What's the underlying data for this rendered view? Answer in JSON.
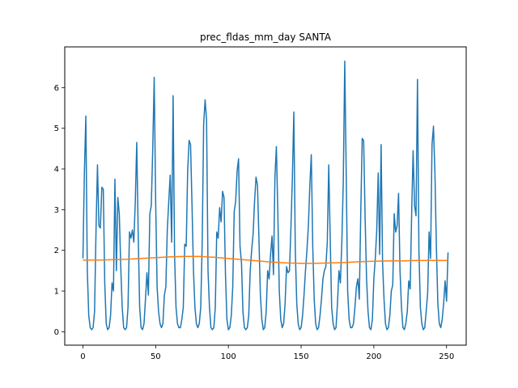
{
  "chart_data": {
    "type": "line",
    "title": "prec_fldas_mm_day SANTA",
    "xlabel": "",
    "ylabel": "",
    "xlim": [
      -12.5,
      263.5
    ],
    "ylim": [
      -0.33,
      7.0
    ],
    "xticks": [
      0,
      50,
      100,
      150,
      200,
      250
    ],
    "yticks": [
      0,
      1,
      2,
      3,
      4,
      5,
      6
    ],
    "grid": false,
    "legend": "none",
    "series": [
      {
        "color": "#1f77b4",
        "x": [
          0,
          1,
          2,
          3,
          4,
          5,
          6,
          7,
          8,
          9,
          10,
          11,
          12,
          13,
          14,
          15,
          16,
          17,
          18,
          19,
          20,
          21,
          22,
          23,
          24,
          25,
          26,
          27,
          28,
          29,
          30,
          31,
          32,
          33,
          34,
          35,
          36,
          37,
          38,
          39,
          40,
          41,
          42,
          43,
          44,
          45,
          46,
          47,
          48,
          49,
          50,
          51,
          52,
          53,
          54,
          55,
          56,
          57,
          58,
          59,
          60,
          61,
          62,
          63,
          64,
          65,
          66,
          67,
          68,
          69,
          70,
          71,
          72,
          73,
          74,
          75,
          76,
          77,
          78,
          79,
          80,
          81,
          82,
          83,
          84,
          85,
          86,
          87,
          88,
          89,
          90,
          91,
          92,
          93,
          94,
          95,
          96,
          97,
          98,
          99,
          100,
          101,
          102,
          103,
          104,
          105,
          106,
          107,
          108,
          109,
          110,
          111,
          112,
          113,
          114,
          115,
          116,
          117,
          118,
          119,
          120,
          121,
          122,
          123,
          124,
          125,
          126,
          127,
          128,
          129,
          130,
          131,
          132,
          133,
          134,
          135,
          136,
          137,
          138,
          139,
          140,
          141,
          142,
          143,
          144,
          145,
          146,
          147,
          148,
          149,
          150,
          151,
          152,
          153,
          154,
          155,
          156,
          157,
          158,
          159,
          160,
          161,
          162,
          163,
          164,
          165,
          166,
          167,
          168,
          169,
          170,
          171,
          172,
          173,
          174,
          175,
          176,
          177,
          178,
          179,
          180,
          181,
          182,
          183,
          184,
          185,
          186,
          187,
          188,
          189,
          190,
          191,
          192,
          193,
          194,
          195,
          196,
          197,
          198,
          199,
          200,
          201,
          202,
          203,
          204,
          205,
          206,
          207,
          208,
          209,
          210,
          211,
          212,
          213,
          214,
          215,
          216,
          217,
          218,
          219,
          220,
          221,
          222,
          223,
          224,
          225,
          226,
          227,
          228,
          229,
          230,
          231,
          232,
          233,
          234,
          235,
          236,
          237,
          238,
          239,
          240,
          241,
          242,
          243,
          244,
          245,
          246,
          247,
          248,
          249,
          250,
          251
        ],
        "values": [
          1.8,
          3.9,
          5.3,
          1.5,
          0.4,
          0.1,
          0.05,
          0.1,
          0.5,
          2.5,
          4.1,
          2.6,
          2.55,
          3.55,
          3.5,
          1.2,
          0.2,
          0.05,
          0.1,
          0.4,
          1.2,
          1.0,
          3.75,
          1.5,
          3.3,
          2.9,
          1.6,
          0.6,
          0.1,
          0.05,
          0.1,
          0.6,
          2.45,
          2.3,
          2.5,
          2.2,
          3.2,
          4.65,
          2.4,
          0.6,
          0.1,
          0.05,
          0.2,
          0.8,
          1.45,
          0.9,
          2.9,
          3.1,
          4.5,
          6.25,
          3.2,
          1.1,
          0.5,
          0.2,
          0.1,
          0.2,
          0.9,
          1.1,
          2.5,
          3.2,
          3.85,
          2.2,
          5.8,
          1.9,
          0.6,
          0.2,
          0.1,
          0.1,
          0.3,
          0.6,
          2.15,
          2.1,
          3.95,
          4.7,
          4.6,
          3.1,
          1.5,
          0.6,
          0.2,
          0.1,
          0.2,
          0.6,
          2.2,
          5.1,
          5.7,
          5.2,
          1.5,
          0.6,
          0.1,
          0.05,
          0.1,
          0.6,
          2.45,
          2.3,
          3.05,
          2.7,
          3.45,
          3.3,
          1.4,
          0.3,
          0.05,
          0.1,
          0.4,
          1.1,
          2.95,
          3.2,
          3.95,
          4.25,
          2.1,
          1.7,
          0.5,
          0.1,
          0.05,
          0.1,
          0.4,
          1.5,
          2.0,
          2.4,
          3.2,
          3.8,
          3.6,
          2.3,
          0.9,
          0.3,
          0.05,
          0.1,
          0.5,
          1.5,
          1.3,
          1.9,
          2.35,
          1.4,
          3.8,
          4.55,
          2.9,
          1.0,
          0.3,
          0.1,
          0.2,
          0.7,
          1.6,
          1.45,
          1.5,
          2.55,
          3.8,
          5.4,
          2.0,
          0.7,
          0.2,
          0.05,
          0.1,
          0.4,
          0.9,
          1.5,
          2.0,
          2.6,
          3.6,
          4.35,
          2.1,
          0.8,
          0.2,
          0.05,
          0.1,
          0.4,
          0.8,
          1.3,
          1.5,
          1.6,
          2.2,
          4.1,
          2.3,
          0.6,
          0.2,
          0.05,
          0.1,
          0.7,
          1.5,
          1.2,
          2.2,
          3.7,
          6.65,
          3.9,
          1.0,
          0.3,
          0.1,
          0.1,
          0.2,
          0.6,
          1.1,
          1.3,
          0.8,
          2.9,
          4.75,
          4.7,
          2.8,
          1.3,
          0.5,
          0.1,
          0.05,
          0.3,
          1.3,
          1.8,
          2.5,
          3.9,
          1.9,
          4.6,
          1.7,
          0.8,
          0.2,
          0.05,
          0.1,
          0.4,
          1.0,
          1.15,
          2.9,
          2.45,
          2.6,
          3.4,
          1.5,
          0.6,
          0.1,
          0.05,
          0.2,
          0.5,
          1.25,
          1.05,
          2.9,
          4.45,
          3.1,
          2.85,
          6.2,
          2.0,
          0.6,
          0.2,
          0.05,
          0.1,
          0.5,
          0.95,
          2.45,
          1.8,
          4.6,
          5.05,
          3.9,
          2.1,
          0.7,
          0.2,
          0.1,
          0.3,
          0.7,
          1.25,
          0.75,
          1.95
        ]
      },
      {
        "color": "#ff7f0e",
        "x": [
          0,
          10,
          20,
          30,
          40,
          50,
          60,
          70,
          80,
          90,
          100,
          110,
          120,
          130,
          140,
          150,
          160,
          170,
          180,
          190,
          200,
          210,
          220,
          230,
          240,
          251
        ],
        "values": [
          1.76,
          1.76,
          1.77,
          1.78,
          1.8,
          1.82,
          1.84,
          1.85,
          1.85,
          1.83,
          1.8,
          1.77,
          1.74,
          1.71,
          1.69,
          1.68,
          1.68,
          1.69,
          1.7,
          1.72,
          1.73,
          1.74,
          1.74,
          1.75,
          1.75,
          1.75
        ]
      }
    ]
  }
}
